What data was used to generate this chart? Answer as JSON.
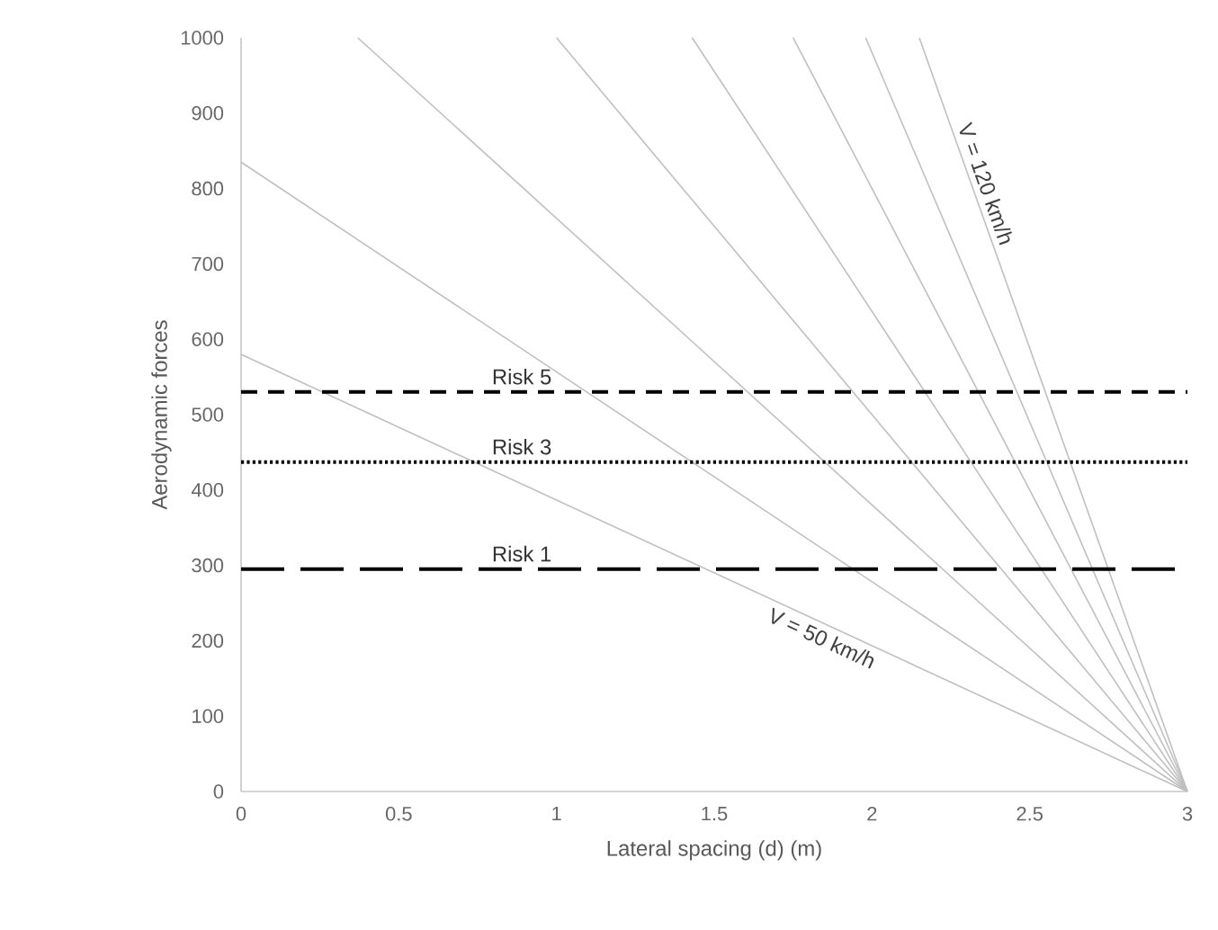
{
  "chart_data": {
    "type": "line",
    "xlabel": "Lateral spacing (d) (m)",
    "ylabel": "Aerodynamic forces",
    "xlim": [
      0,
      3
    ],
    "xticks": [
      0,
      0.5,
      1,
      1.5,
      2,
      2.5,
      3
    ],
    "ylim": [
      0,
      1000
    ],
    "yticks": [
      0,
      100,
      200,
      300,
      400,
      500,
      600,
      700,
      800,
      900,
      1000
    ],
    "grid": false,
    "marker": "none",
    "line_style": "solid",
    "series": [
      {
        "name": "V = 50 km/h",
        "color": "#bfbfbf",
        "x": [
          0,
          3
        ],
        "values": [
          580,
          0
        ]
      },
      {
        "color": "#bfbfbf",
        "x": [
          0,
          3
        ],
        "values": [
          835,
          0
        ]
      },
      {
        "color": "#bfbfbf",
        "x": [
          0.37,
          3
        ],
        "values": [
          1000,
          0
        ]
      },
      {
        "color": "#bfbfbf",
        "x": [
          1.0,
          3
        ],
        "values": [
          1000,
          0
        ]
      },
      {
        "color": "#bfbfbf",
        "x": [
          1.43,
          3
        ],
        "values": [
          1000,
          0
        ]
      },
      {
        "color": "#bfbfbf",
        "x": [
          1.75,
          3
        ],
        "values": [
          1000,
          0
        ]
      },
      {
        "color": "#bfbfbf",
        "x": [
          1.98,
          3
        ],
        "values": [
          1000,
          0
        ]
      },
      {
        "name": "V = 120 km/h",
        "color": "#bfbfbf",
        "x": [
          2.15,
          3
        ],
        "values": [
          1000,
          0
        ]
      }
    ],
    "ref_lines": [
      {
        "axis": "y",
        "value": 530,
        "label": "Risk 5",
        "color": "#000000",
        "line_style": "dashed"
      },
      {
        "axis": "y",
        "value": 437,
        "label": "Risk 3",
        "color": "#000000",
        "line_style": "dotted"
      },
      {
        "axis": "y",
        "value": 295,
        "label": "Risk 1",
        "color": "#000000",
        "line_style": "longdashed"
      }
    ]
  }
}
